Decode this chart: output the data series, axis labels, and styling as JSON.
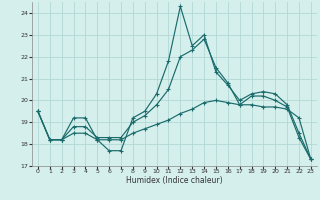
{
  "xlabel": "Humidex (Indice chaleur)",
  "background_color": "#d5efed",
  "grid_color": "#b0d8d5",
  "line_color": "#1a6b6b",
  "xlim": [
    -0.5,
    23.5
  ],
  "ylim": [
    17.0,
    24.5
  ],
  "yticks": [
    17,
    18,
    19,
    20,
    21,
    22,
    23,
    24
  ],
  "xticks": [
    0,
    1,
    2,
    3,
    4,
    5,
    6,
    7,
    8,
    9,
    10,
    11,
    12,
    13,
    14,
    15,
    16,
    17,
    18,
    19,
    20,
    21,
    22,
    23
  ],
  "hours": [
    0,
    1,
    2,
    3,
    4,
    5,
    6,
    7,
    8,
    9,
    10,
    11,
    12,
    13,
    14,
    15,
    16,
    17,
    18,
    19,
    20,
    21,
    22,
    23
  ],
  "line1": [
    19.5,
    18.2,
    18.2,
    19.2,
    19.2,
    18.2,
    17.7,
    17.7,
    19.2,
    19.5,
    20.3,
    21.8,
    24.3,
    22.5,
    23.0,
    21.3,
    20.7,
    20.0,
    20.3,
    20.4,
    20.3,
    19.8,
    18.5,
    17.3
  ],
  "line2": [
    19.5,
    18.2,
    18.2,
    18.8,
    18.8,
    18.3,
    18.3,
    18.3,
    19.0,
    19.3,
    19.8,
    20.5,
    22.0,
    22.3,
    22.8,
    21.5,
    20.8,
    19.8,
    20.2,
    20.2,
    20.0,
    19.7,
    18.3,
    17.3
  ],
  "line3": [
    19.5,
    18.2,
    18.2,
    18.5,
    18.5,
    18.2,
    18.2,
    18.2,
    18.5,
    18.7,
    18.9,
    19.1,
    19.4,
    19.6,
    19.9,
    20.0,
    19.9,
    19.8,
    19.8,
    19.7,
    19.7,
    19.6,
    19.2,
    17.3
  ]
}
